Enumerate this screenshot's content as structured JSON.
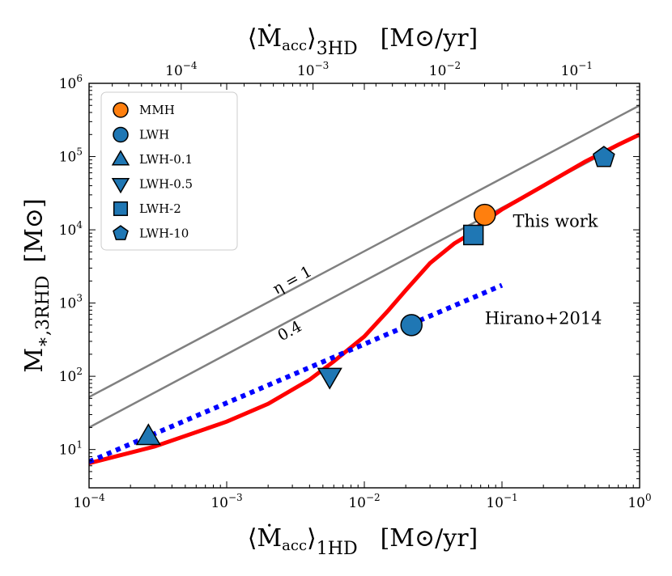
{
  "chart_data": {
    "type": "line",
    "x_scale": "log",
    "y_scale": "log",
    "xlim": [
      0.0001,
      1
    ],
    "ylim": [
      3,
      1000000
    ],
    "top_xlim": [
      2e-05,
      0.3
    ],
    "grid": false,
    "legend_position": "top-left",
    "xlabel": {
      "main": "⟨Ṁ",
      "sub_inner": "acc",
      "close": "⟩",
      "sub": "1HD",
      "unit": "[M⊙/yr]"
    },
    "ylabel": {
      "main": "M",
      "sub": "∗,3RHD",
      "unit": "[M⊙]"
    },
    "top_xlabel": {
      "main": "⟨Ṁ",
      "sub_inner": "acc",
      "close": "⟩",
      "sub": "3HD",
      "unit": "[M⊙/yr]"
    },
    "x_ticks": [
      {
        "value": 0.0001,
        "base": "10",
        "exp": "−4"
      },
      {
        "value": 0.001,
        "base": "10",
        "exp": "−3"
      },
      {
        "value": 0.01,
        "base": "10",
        "exp": "−2"
      },
      {
        "value": 0.1,
        "base": "10",
        "exp": "−1"
      },
      {
        "value": 1,
        "base": "10",
        "exp": "0"
      }
    ],
    "y_ticks": [
      {
        "value": 10,
        "base": "10",
        "exp": "1"
      },
      {
        "value": 100,
        "base": "10",
        "exp": "2"
      },
      {
        "value": 1000,
        "base": "10",
        "exp": "3"
      },
      {
        "value": 10000,
        "base": "10",
        "exp": "4"
      },
      {
        "value": 100000,
        "base": "10",
        "exp": "5"
      },
      {
        "value": 1000000,
        "base": "10",
        "exp": "6"
      }
    ],
    "top_ticks": [
      {
        "value": 0.0001,
        "base": "10",
        "exp": "−4"
      },
      {
        "value": 0.001,
        "base": "10",
        "exp": "−3"
      },
      {
        "value": 0.01,
        "base": "10",
        "exp": "−2"
      },
      {
        "value": 0.1,
        "base": "10",
        "exp": "−1"
      }
    ],
    "series": [
      {
        "kind": "line",
        "label": "η = 1",
        "color": "#808080",
        "style": "solid",
        "x": [
          0.0001,
          1
        ],
        "y": [
          52,
          500000
        ]
      },
      {
        "kind": "line",
        "label": "0.4",
        "color": "#808080",
        "style": "solid",
        "x": [
          0.0001,
          1
        ],
        "y": [
          20,
          200000
        ]
      },
      {
        "kind": "line",
        "label": "This work",
        "color": "#ff0000",
        "style": "solid",
        "x": [
          0.0001,
          0.0003,
          0.001,
          0.002,
          0.004,
          0.006,
          0.01,
          0.015,
          0.02,
          0.03,
          0.045,
          0.06,
          0.07,
          0.1,
          0.2,
          0.4,
          0.7,
          1
        ],
        "y": [
          6.5,
          11,
          24,
          42,
          90,
          160,
          350,
          800,
          1500,
          3500,
          6500,
          9000,
          12000,
          19000,
          40000,
          85000,
          145000,
          200000
        ]
      },
      {
        "kind": "line",
        "label": "Hirano+2014",
        "color": "#0000ff",
        "style": "dotted",
        "x": [
          0.0001,
          0.1
        ],
        "y": [
          6.8,
          1750
        ]
      }
    ],
    "points": [
      {
        "name": "MMH",
        "marker": "circle",
        "color": "#ff7f0e",
        "x": 0.075,
        "y": 16000
      },
      {
        "name": "LWH",
        "marker": "circle",
        "color": "#1f77b4",
        "x": 0.022,
        "y": 500
      },
      {
        "name": "LWH-0.1",
        "marker": "triangle-up",
        "color": "#1f77b4",
        "x": 0.00027,
        "y": 15
      },
      {
        "name": "LWH-0.5",
        "marker": "triangle-down",
        "color": "#1f77b4",
        "x": 0.0056,
        "y": 100
      },
      {
        "name": "LWH-2",
        "marker": "square",
        "color": "#1f77b4",
        "x": 0.062,
        "y": 8500
      },
      {
        "name": "LWH-10",
        "marker": "pentagon",
        "color": "#1f77b4",
        "x": 0.55,
        "y": 97000
      }
    ],
    "annotations": {
      "eta1": {
        "text": "η = 1",
        "color": "#808080",
        "x": 0.0023,
        "y": 1300
      },
      "eta04": {
        "text": "0.4",
        "color": "#808080",
        "x": 0.0025,
        "y": 300
      },
      "this_work": {
        "text": "This work",
        "color": "#ff0000",
        "x": 0.12,
        "y": 11000
      },
      "hirano": {
        "text": "Hirano+2014",
        "color": "#0000ff",
        "x": 0.075,
        "y": 520
      }
    },
    "legend": [
      {
        "label": "MMH",
        "marker": "circle",
        "color": "#ff7f0e"
      },
      {
        "label": "LWH",
        "marker": "circle",
        "color": "#1f77b4"
      },
      {
        "label": "LWH-0.1",
        "marker": "triangle-up",
        "color": "#1f77b4"
      },
      {
        "label": "LWH-0.5",
        "marker": "triangle-down",
        "color": "#1f77b4"
      },
      {
        "label": "LWH-2",
        "marker": "square",
        "color": "#1f77b4"
      },
      {
        "label": "LWH-10",
        "marker": "pentagon",
        "color": "#1f77b4"
      }
    ]
  }
}
